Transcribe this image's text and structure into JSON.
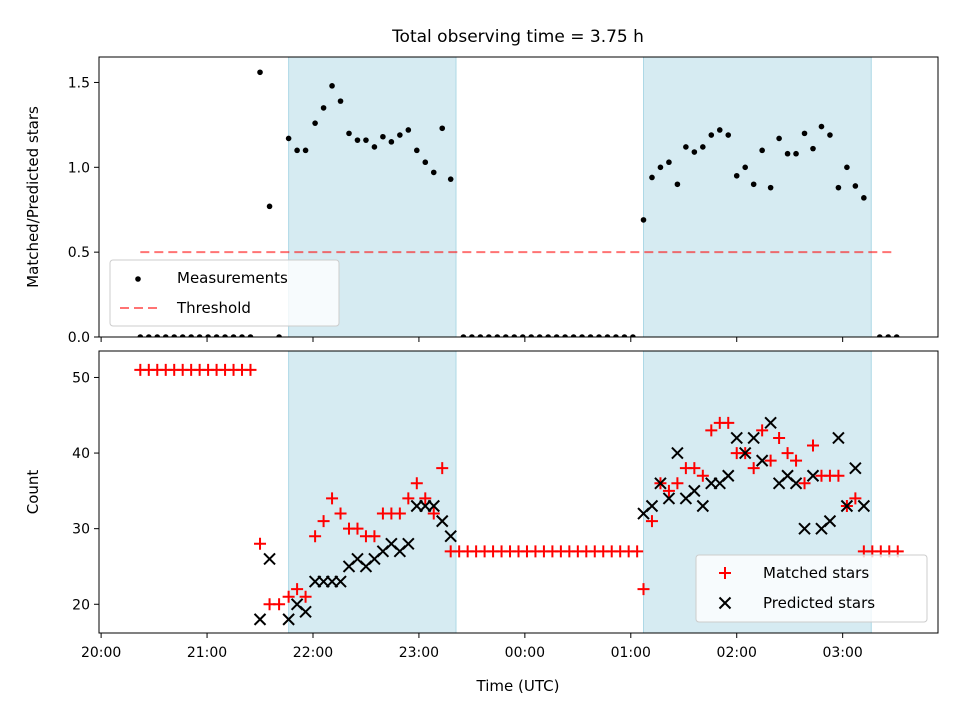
{
  "chart_data": {
    "type": "scatter",
    "title": "Total observing time = 3.75 h",
    "xlabel": "Time (UTC)",
    "x_unit": "hours since 20:00 UTC",
    "x_ticks": [
      {
        "value": 0,
        "label": "20:00"
      },
      {
        "value": 1,
        "label": "21:00"
      },
      {
        "value": 2,
        "label": "22:00"
      },
      {
        "value": 3,
        "label": "23:00"
      },
      {
        "value": 4,
        "label": "00:00"
      },
      {
        "value": 5,
        "label": "01:00"
      },
      {
        "value": 6,
        "label": "02:00"
      },
      {
        "value": 7,
        "label": "03:00"
      }
    ],
    "xlim": [
      -0.02,
      7.9
    ],
    "shaded_intervals": [
      [
        1.77,
        3.35
      ],
      [
        5.12,
        7.27
      ]
    ],
    "shade_color": "#add8e6",
    "panels": [
      {
        "id": "ratio",
        "ylabel": "Matched/Predicted stars",
        "ylim": [
          0,
          1.65
        ],
        "y_ticks": [
          0,
          0.5,
          1.0,
          1.5
        ],
        "y_tick_labels": [
          "0.0",
          "0.5",
          "1.0",
          "1.5"
        ],
        "threshold": {
          "name": "Threshold",
          "value": 0.5,
          "x_range": [
            0.37,
            7.5
          ],
          "color": "#ff0000"
        },
        "series": [
          {
            "name": "Measurements",
            "marker": "dot",
            "color": "#000000",
            "points": [
              [
                0.37,
                0
              ],
              [
                0.45,
                0
              ],
              [
                0.53,
                0
              ],
              [
                0.61,
                0
              ],
              [
                0.69,
                0
              ],
              [
                0.77,
                0
              ],
              [
                0.85,
                0
              ],
              [
                0.93,
                0
              ],
              [
                1.01,
                0
              ],
              [
                1.09,
                0
              ],
              [
                1.17,
                0
              ],
              [
                1.25,
                0
              ],
              [
                1.33,
                0
              ],
              [
                1.41,
                0
              ],
              [
                1.5,
                1.56
              ],
              [
                1.59,
                0.77
              ],
              [
                1.68,
                0
              ],
              [
                1.77,
                1.17
              ],
              [
                1.85,
                1.1
              ],
              [
                1.93,
                1.1
              ],
              [
                2.02,
                1.26
              ],
              [
                2.1,
                1.35
              ],
              [
                2.18,
                1.48
              ],
              [
                2.26,
                1.39
              ],
              [
                2.34,
                1.2
              ],
              [
                2.42,
                1.16
              ],
              [
                2.5,
                1.16
              ],
              [
                2.58,
                1.12
              ],
              [
                2.66,
                1.18
              ],
              [
                2.74,
                1.15
              ],
              [
                2.82,
                1.19
              ],
              [
                2.9,
                1.22
              ],
              [
                2.98,
                1.1
              ],
              [
                3.06,
                1.03
              ],
              [
                3.14,
                0.97
              ],
              [
                3.22,
                1.23
              ],
              [
                3.3,
                0.93
              ],
              [
                3.42,
                0
              ],
              [
                3.5,
                0
              ],
              [
                3.58,
                0
              ],
              [
                3.66,
                0
              ],
              [
                3.74,
                0
              ],
              [
                3.82,
                0
              ],
              [
                3.9,
                0
              ],
              [
                3.98,
                0
              ],
              [
                4.06,
                0
              ],
              [
                4.14,
                0
              ],
              [
                4.22,
                0
              ],
              [
                4.3,
                0
              ],
              [
                4.38,
                0
              ],
              [
                4.46,
                0
              ],
              [
                4.54,
                0
              ],
              [
                4.62,
                0
              ],
              [
                4.7,
                0
              ],
              [
                4.78,
                0
              ],
              [
                4.86,
                0
              ],
              [
                4.94,
                0
              ],
              [
                5.02,
                0
              ],
              [
                5.12,
                0.69
              ],
              [
                5.2,
                0.94
              ],
              [
                5.28,
                1.0
              ],
              [
                5.36,
                1.03
              ],
              [
                5.44,
                0.9
              ],
              [
                5.52,
                1.12
              ],
              [
                5.6,
                1.09
              ],
              [
                5.68,
                1.12
              ],
              [
                5.76,
                1.19
              ],
              [
                5.84,
                1.22
              ],
              [
                5.92,
                1.19
              ],
              [
                6.0,
                0.95
              ],
              [
                6.08,
                1.0
              ],
              [
                6.16,
                0.9
              ],
              [
                6.24,
                1.1
              ],
              [
                6.32,
                0.88
              ],
              [
                6.4,
                1.17
              ],
              [
                6.48,
                1.08
              ],
              [
                6.56,
                1.08
              ],
              [
                6.64,
                1.2
              ],
              [
                6.72,
                1.11
              ],
              [
                6.8,
                1.24
              ],
              [
                6.88,
                1.19
              ],
              [
                6.96,
                0.88
              ],
              [
                7.04,
                1.0
              ],
              [
                7.12,
                0.89
              ],
              [
                7.2,
                0.82
              ],
              [
                7.35,
                0
              ],
              [
                7.43,
                0
              ],
              [
                7.51,
                0
              ]
            ]
          }
        ],
        "legend": {
          "location": "lower-left",
          "entries": [
            "Measurements",
            "Threshold"
          ]
        }
      },
      {
        "id": "count",
        "ylabel": "Count",
        "ylim": [
          16.2,
          53.5
        ],
        "y_ticks": [
          20,
          30,
          40,
          50
        ],
        "y_tick_labels": [
          "20",
          "30",
          "40",
          "50"
        ],
        "series": [
          {
            "name": "Matched stars",
            "marker": "plus",
            "color": "#ff0000",
            "points": [
              [
                0.37,
                51
              ],
              [
                0.45,
                51
              ],
              [
                0.53,
                51
              ],
              [
                0.61,
                51
              ],
              [
                0.69,
                51
              ],
              [
                0.77,
                51
              ],
              [
                0.85,
                51
              ],
              [
                0.93,
                51
              ],
              [
                1.01,
                51
              ],
              [
                1.09,
                51
              ],
              [
                1.17,
                51
              ],
              [
                1.25,
                51
              ],
              [
                1.33,
                51
              ],
              [
                1.41,
                51
              ],
              [
                1.5,
                28
              ],
              [
                1.59,
                20
              ],
              [
                1.68,
                20
              ],
              [
                1.77,
                21
              ],
              [
                1.85,
                22
              ],
              [
                1.93,
                21
              ],
              [
                2.02,
                29
              ],
              [
                2.1,
                31
              ],
              [
                2.18,
                34
              ],
              [
                2.26,
                32
              ],
              [
                2.34,
                30
              ],
              [
                2.42,
                30
              ],
              [
                2.5,
                29
              ],
              [
                2.58,
                29
              ],
              [
                2.66,
                32
              ],
              [
                2.74,
                32
              ],
              [
                2.82,
                32
              ],
              [
                2.9,
                34
              ],
              [
                2.98,
                36
              ],
              [
                3.06,
                34
              ],
              [
                3.14,
                32
              ],
              [
                3.22,
                38
              ],
              [
                3.3,
                27
              ],
              [
                3.38,
                27
              ],
              [
                3.46,
                27
              ],
              [
                3.54,
                27
              ],
              [
                3.62,
                27
              ],
              [
                3.7,
                27
              ],
              [
                3.78,
                27
              ],
              [
                3.86,
                27
              ],
              [
                3.94,
                27
              ],
              [
                4.02,
                27
              ],
              [
                4.1,
                27
              ],
              [
                4.18,
                27
              ],
              [
                4.26,
                27
              ],
              [
                4.34,
                27
              ],
              [
                4.42,
                27
              ],
              [
                4.5,
                27
              ],
              [
                4.58,
                27
              ],
              [
                4.66,
                27
              ],
              [
                4.74,
                27
              ],
              [
                4.82,
                27
              ],
              [
                4.9,
                27
              ],
              [
                4.98,
                27
              ],
              [
                5.06,
                27
              ],
              [
                5.12,
                22
              ],
              [
                5.2,
                31
              ],
              [
                5.28,
                36
              ],
              [
                5.36,
                35
              ],
              [
                5.44,
                36
              ],
              [
                5.52,
                38
              ],
              [
                5.6,
                38
              ],
              [
                5.68,
                37
              ],
              [
                5.76,
                43
              ],
              [
                5.84,
                44
              ],
              [
                5.92,
                44
              ],
              [
                6.0,
                40
              ],
              [
                6.08,
                40
              ],
              [
                6.16,
                38
              ],
              [
                6.24,
                43
              ],
              [
                6.32,
                39
              ],
              [
                6.4,
                42
              ],
              [
                6.48,
                40
              ],
              [
                6.56,
                39
              ],
              [
                6.64,
                36
              ],
              [
                6.72,
                41
              ],
              [
                6.8,
                37
              ],
              [
                6.88,
                37
              ],
              [
                6.96,
                37
              ],
              [
                7.04,
                33
              ],
              [
                7.12,
                34
              ],
              [
                7.2,
                27
              ],
              [
                7.28,
                27
              ],
              [
                7.36,
                27
              ],
              [
                7.44,
                27
              ],
              [
                7.52,
                27
              ]
            ]
          },
          {
            "name": "Predicted stars",
            "marker": "x",
            "color": "#000000",
            "points": [
              [
                1.5,
                18
              ],
              [
                1.59,
                26
              ],
              [
                1.77,
                18
              ],
              [
                1.85,
                20
              ],
              [
                1.93,
                19
              ],
              [
                2.02,
                23
              ],
              [
                2.1,
                23
              ],
              [
                2.18,
                23
              ],
              [
                2.26,
                23
              ],
              [
                2.34,
                25
              ],
              [
                2.42,
                26
              ],
              [
                2.5,
                25
              ],
              [
                2.58,
                26
              ],
              [
                2.66,
                27
              ],
              [
                2.74,
                28
              ],
              [
                2.82,
                27
              ],
              [
                2.9,
                28
              ],
              [
                2.98,
                33
              ],
              [
                3.06,
                33
              ],
              [
                3.14,
                33
              ],
              [
                3.22,
                31
              ],
              [
                3.3,
                29
              ],
              [
                5.12,
                32
              ],
              [
                5.2,
                33
              ],
              [
                5.28,
                36
              ],
              [
                5.36,
                34
              ],
              [
                5.44,
                40
              ],
              [
                5.52,
                34
              ],
              [
                5.6,
                35
              ],
              [
                5.68,
                33
              ],
              [
                5.76,
                36
              ],
              [
                5.84,
                36
              ],
              [
                5.92,
                37
              ],
              [
                6.0,
                42
              ],
              [
                6.08,
                40
              ],
              [
                6.16,
                42
              ],
              [
                6.24,
                39
              ],
              [
                6.32,
                44
              ],
              [
                6.4,
                36
              ],
              [
                6.48,
                37
              ],
              [
                6.56,
                36
              ],
              [
                6.64,
                30
              ],
              [
                6.72,
                37
              ],
              [
                6.8,
                30
              ],
              [
                6.88,
                31
              ],
              [
                6.96,
                42
              ],
              [
                7.04,
                33
              ],
              [
                7.12,
                38
              ],
              [
                7.2,
                33
              ]
            ]
          }
        ],
        "legend": {
          "location": "lower-right",
          "entries": [
            "Matched stars",
            "Predicted stars"
          ]
        }
      }
    ]
  }
}
